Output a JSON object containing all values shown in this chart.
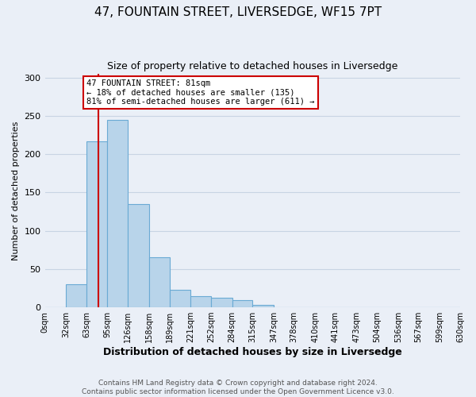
{
  "title": "47, FOUNTAIN STREET, LIVERSEDGE, WF15 7PT",
  "subtitle": "Size of property relative to detached houses in Liversedge",
  "xlabel": "Distribution of detached houses by size in Liversedge",
  "ylabel": "Number of detached properties",
  "footer_line1": "Contains HM Land Registry data © Crown copyright and database right 2024.",
  "footer_line2": "Contains public sector information licensed under the Open Government Licence v3.0.",
  "bin_labels": [
    "0sqm",
    "32sqm",
    "63sqm",
    "95sqm",
    "126sqm",
    "158sqm",
    "189sqm",
    "221sqm",
    "252sqm",
    "284sqm",
    "315sqm",
    "347sqm",
    "378sqm",
    "410sqm",
    "441sqm",
    "473sqm",
    "504sqm",
    "536sqm",
    "567sqm",
    "599sqm",
    "630sqm"
  ],
  "bar_values": [
    0,
    30,
    217,
    245,
    135,
    65,
    23,
    15,
    13,
    9,
    3,
    0,
    0,
    0,
    0,
    0,
    0,
    0,
    0,
    0
  ],
  "bar_color": "#b8d4ea",
  "bar_edge_color": "#6aaad4",
  "marker_line_x": 81,
  "annotation_line1": "47 FOUNTAIN STREET: 81sqm",
  "annotation_line2": "← 18% of detached houses are smaller (135)",
  "annotation_line3": "81% of semi-detached houses are larger (611) →",
  "annotation_box_color": "#ffffff",
  "annotation_box_edge_color": "#cc0000",
  "marker_line_color": "#cc0000",
  "ylim": [
    0,
    305
  ],
  "xlim_min": 0,
  "xlim_max": 630,
  "bin_edges": [
    0,
    32,
    63,
    95,
    126,
    158,
    189,
    221,
    252,
    284,
    315,
    347,
    378,
    410,
    441,
    473,
    504,
    536,
    567,
    599,
    630
  ],
  "grid_color": "#c8d4e4",
  "bg_color": "#eaeff7",
  "title_fontsize": 11,
  "subtitle_fontsize": 9,
  "xlabel_fontsize": 9,
  "ylabel_fontsize": 8,
  "tick_fontsize": 7,
  "footer_fontsize": 6.5
}
